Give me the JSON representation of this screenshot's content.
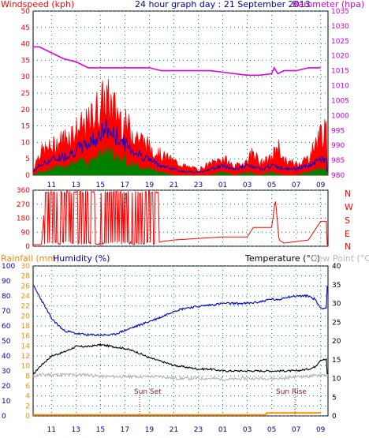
{
  "header": {
    "wind_label": "Windspeed (kph)",
    "title": "24 hour graph day : 21 September 2013",
    "baro_label": "Barometer (hpa)"
  },
  "compass": [
    "N",
    "W",
    "S",
    "E",
    "N"
  ],
  "bottom_header": {
    "rain_label": "Rainfall (mm)",
    "hum_label": "Humidity (%)",
    "temp_label": "Temperature (°C)",
    "dew_label": "Dew Point (°C)"
  },
  "sun": {
    "set_label": "Sun Set",
    "set_time": 18.2,
    "rise_label": "Sun Rise",
    "rise_time": 6.9
  },
  "colors": {
    "wind_gust": "#ff0000",
    "wind_avg": "#0000dd",
    "wind_low": "#008000",
    "barometer": "#e000e0",
    "direction": "#ff0000",
    "humidity": "#0000cc",
    "temperature": "#000000",
    "dewpoint": "#b8b8b8",
    "rainfall": "#ff8c00",
    "axis_red": "#ff0000",
    "axis_magenta": "#cc00cc",
    "axis_blue": "#0000aa",
    "grid": "#008080"
  },
  "chart_data": [
    {
      "type": "line",
      "title": "24 hour graph day : 21 September 2013",
      "x_ticks": [
        "11",
        "13",
        "15",
        "17",
        "19",
        "21",
        "23",
        "01",
        "03",
        "05",
        "07",
        "09"
      ],
      "x_hours": [
        [
          9.5,
          0
        ],
        [
          10.5,
          4
        ],
        [
          11,
          3
        ],
        [
          12,
          6
        ],
        [
          13,
          8
        ],
        [
          14,
          14
        ],
        [
          15,
          20
        ],
        [
          15.5,
          24
        ],
        [
          16,
          20
        ],
        [
          17,
          16
        ],
        [
          18,
          12
        ],
        [
          19,
          9
        ],
        [
          20,
          6
        ],
        [
          21,
          4
        ],
        [
          22,
          3
        ],
        [
          23,
          1
        ],
        [
          0,
          2
        ],
        [
          1,
          3
        ],
        [
          2,
          4
        ],
        [
          3,
          3
        ],
        [
          4,
          5
        ],
        [
          5,
          7
        ],
        [
          6,
          5
        ],
        [
          7,
          4
        ],
        [
          8,
          6
        ],
        [
          9,
          9
        ]
      ],
      "wind": {
        "ylabel": "Windspeed (kph)",
        "ylim": [
          0,
          50
        ],
        "y_ticks": [
          0,
          5,
          10,
          15,
          20,
          25,
          30,
          35,
          40,
          45,
          50
        ],
        "series": [
          {
            "name": "gust",
            "x": [
              9.5,
              10,
              11,
              12,
              13,
              14,
              14.5,
              15,
              15.5,
              16,
              16.5,
              17,
              18,
              19,
              20,
              21,
              22,
              23,
              0,
              1,
              2,
              3,
              3.5,
              4,
              5,
              5.5,
              6,
              7,
              8,
              9
            ],
            "values": [
              2,
              8,
              10,
              13,
              16,
              18,
              22,
              25,
              27,
              24,
              22,
              18,
              14,
              10,
              7,
              5,
              3,
              2,
              4,
              6,
              3,
              5,
              9,
              4,
              6,
              11,
              5,
              4,
              6,
              15
            ]
          },
          {
            "name": "average",
            "x": [
              9.5,
              10,
              11,
              12,
              13,
              14,
              14.5,
              15,
              15.5,
              16,
              16.5,
              17,
              18,
              19,
              20,
              21,
              22,
              23,
              0,
              1,
              2,
              3,
              4,
              5,
              6,
              7,
              8,
              9
            ],
            "values": [
              1,
              3,
              5,
              6,
              8,
              10,
              12,
              13,
              15,
              13,
              12,
              10,
              7,
              5,
              3,
              2,
              1,
              1,
              2,
              3,
              2,
              3,
              2,
              3,
              2,
              2,
              3,
              5
            ]
          },
          {
            "name": "low",
            "x": [
              9.5,
              10,
              11,
              12,
              13,
              14,
              14.5,
              15,
              15.5,
              16,
              16.5,
              17,
              18,
              19,
              20,
              21,
              22,
              23,
              0,
              1,
              2,
              3,
              4,
              5,
              6,
              7,
              8,
              9
            ],
            "values": [
              0,
              1,
              2,
              3,
              4,
              5,
              6,
              7,
              8,
              7,
              6,
              5,
              3,
              2,
              1,
              0,
              0,
              0,
              0,
              1,
              0,
              1,
              0,
              1,
              0,
              0,
              1,
              2
            ]
          }
        ]
      },
      "barometer": {
        "ylabel": "Barometer (hpa)",
        "ylim": [
          980,
          1035
        ],
        "y_ticks": [
          980,
          985,
          990,
          995,
          1000,
          1005,
          1010,
          1015,
          1020,
          1025,
          1030,
          1035
        ],
        "x": [
          9.5,
          10,
          11,
          12,
          13,
          14,
          15,
          16,
          17,
          18,
          19,
          20,
          21,
          22,
          23,
          0,
          1,
          2,
          3,
          4,
          5,
          5.2,
          5.5,
          6,
          7,
          8,
          9
        ],
        "values": [
          1023,
          1023,
          1021,
          1019,
          1018,
          1016,
          1016,
          1016,
          1016,
          1016,
          1016,
          1015,
          1015,
          1015,
          1015,
          1015,
          1014.5,
          1014,
          1013.5,
          1013.5,
          1014,
          1016,
          1014,
          1015,
          1015,
          1016,
          1016
        ]
      },
      "direction": {
        "y_ticks": [
          0,
          90,
          180,
          270,
          360
        ],
        "ylim": [
          0,
          360
        ],
        "x": [
          9.5,
          10.2,
          10.5,
          11,
          12,
          13,
          13.5,
          14,
          15,
          15.5,
          16,
          16.5,
          17,
          18,
          18.5,
          19,
          19.5,
          20,
          21,
          22,
          23,
          0,
          1,
          2,
          3,
          3.5,
          4,
          5,
          5.1,
          5.3,
          5.6,
          6,
          7,
          8,
          8.5,
          9
        ],
        "values": [
          10,
          10,
          340,
          350,
          340,
          20,
          340,
          30,
          350,
          20,
          350,
          30,
          340,
          340,
          10,
          10,
          20,
          30,
          40,
          45,
          50,
          55,
          60,
          60,
          60,
          120,
          120,
          120,
          180,
          300,
          40,
          20,
          30,
          40,
          100,
          160
        ]
      },
      "temperature": {
        "ylabel": "Temperature (°C)",
        "ylim": [
          0,
          40
        ],
        "y_ticks": [
          0,
          5,
          10,
          15,
          20,
          25,
          30,
          35,
          40
        ],
        "x": [
          9.5,
          10,
          11,
          12,
          13,
          14,
          15,
          16,
          17,
          18,
          19,
          20,
          21,
          22,
          23,
          0,
          1,
          2,
          3,
          4,
          5,
          6,
          7,
          8,
          8.5,
          9
        ],
        "values": [
          11,
          13,
          16,
          17,
          18.5,
          18.5,
          19,
          18.5,
          18,
          17,
          15.5,
          14.5,
          13.5,
          13,
          12.5,
          12.5,
          12,
          12,
          12,
          12,
          12,
          12,
          12,
          12.5,
          13,
          15
        ]
      },
      "dewpoint": {
        "x": [
          9.5,
          10,
          11,
          12,
          13,
          14,
          15,
          16,
          17,
          18,
          19,
          20,
          21,
          22,
          23,
          0,
          1,
          2,
          3,
          4,
          5,
          6,
          7,
          8,
          9
        ],
        "values": [
          10.5,
          11,
          11,
          11,
          11,
          11,
          10.5,
          10.5,
          10.5,
          10.5,
          10.5,
          10.5,
          10,
          10,
          10,
          10,
          9.8,
          9.8,
          10,
          10,
          10,
          10,
          10.5,
          10.5,
          11
        ]
      },
      "humidity": {
        "ylabel": "Humidity (%)",
        "ylim": [
          0,
          100
        ],
        "y_ticks": [
          0,
          10,
          20,
          30,
          40,
          50,
          60,
          70,
          80,
          90,
          100
        ],
        "x": [
          9.5,
          10,
          11,
          12,
          13,
          14,
          15,
          16,
          17,
          18,
          19,
          20,
          21,
          22,
          23,
          0,
          1,
          2,
          3,
          4,
          5,
          5.5,
          6,
          7,
          8,
          8.5,
          9
        ],
        "values": [
          87,
          80,
          65,
          57,
          55,
          54,
          54,
          54,
          57,
          60,
          63,
          66,
          70,
          72,
          73,
          74,
          75,
          75,
          75,
          76,
          78,
          77,
          79,
          80,
          80,
          78,
          72
        ]
      },
      "rainfall": {
        "ylabel": "Rainfall (mm)",
        "ylim": [
          0,
          30
        ],
        "y_ticks": [
          0,
          2,
          4,
          6,
          8,
          10,
          12,
          14,
          16,
          18,
          20,
          22,
          24,
          26,
          28,
          30
        ],
        "x": [
          9.5,
          4.5,
          4.6,
          9
        ],
        "values": [
          0.2,
          0.2,
          0.6,
          0.6
        ]
      }
    }
  ]
}
